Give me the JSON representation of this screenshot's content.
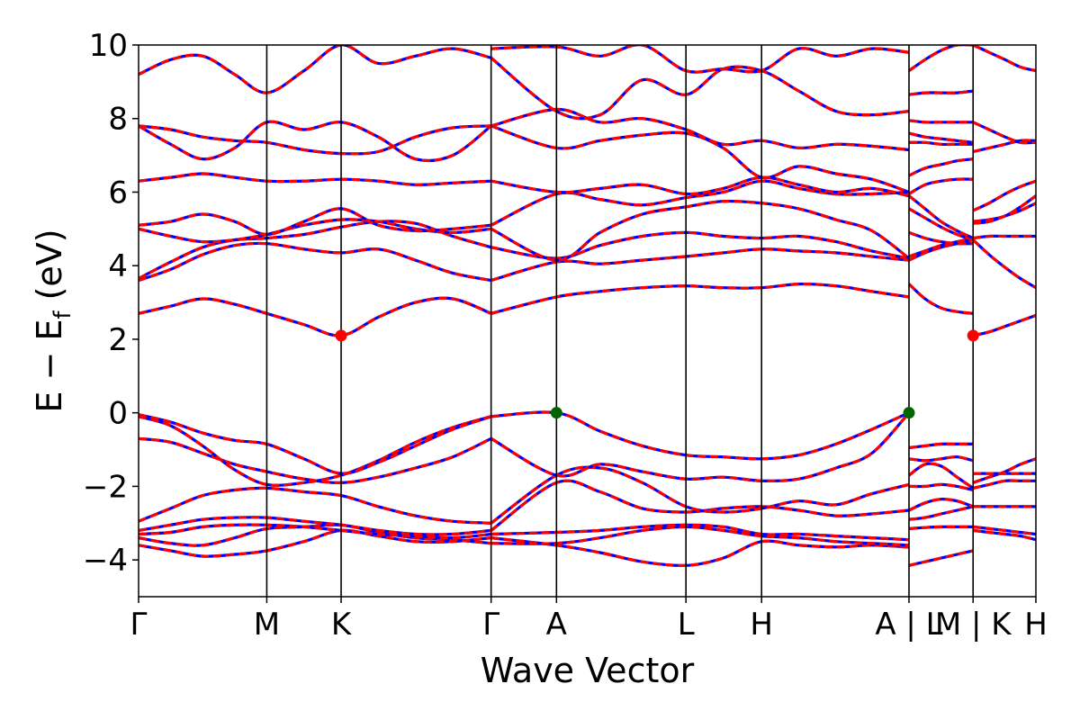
{
  "chart_data": {
    "type": "line",
    "xlabel": "Wave Vector",
    "ylabel_main": "E − E",
    "ylabel_sub": "f",
    "ylabel_unit": " (eV)",
    "ylim": [
      -5,
      10
    ],
    "yticks": [
      {
        "value": 10,
        "label": "10"
      },
      {
        "value": 8,
        "label": "8"
      },
      {
        "value": 6,
        "label": "6"
      },
      {
        "value": 4,
        "label": "4"
      },
      {
        "value": 2,
        "label": "2"
      },
      {
        "value": 0,
        "label": "0"
      },
      {
        "value": -2,
        "label": "−2"
      },
      {
        "value": -4,
        "label": "−4"
      }
    ],
    "xlim": [
      0,
      7.0
    ],
    "kpoints": [
      {
        "x": 0.0,
        "label": "Γ"
      },
      {
        "x": 1.0,
        "label": "M"
      },
      {
        "x": 1.58,
        "label": "K"
      },
      {
        "x": 2.75,
        "label": "Γ"
      },
      {
        "x": 3.26,
        "label": "A"
      },
      {
        "x": 4.27,
        "label": "L"
      },
      {
        "x": 4.86,
        "label": "H"
      },
      {
        "x": 6.01,
        "label": "A | L"
      },
      {
        "x": 6.51,
        "label": "M | K"
      },
      {
        "x": 7.0,
        "label": "H"
      }
    ],
    "grid": false,
    "colors": {
      "up": "#ff0000",
      "down": "#0000ff",
      "cbm": "#ff0000",
      "vbm": "#006400",
      "axis": "#000000"
    },
    "markers": [
      {
        "type": "cbm",
        "x": 1.58,
        "y": 2.1
      },
      {
        "type": "cbm",
        "x": 6.51,
        "y": 2.1
      },
      {
        "type": "vbm",
        "x": 3.26,
        "y": 0.0
      },
      {
        "type": "vbm",
        "x": 6.01,
        "y": 0.0
      }
    ],
    "segments": [
      {
        "x": [
          0.0,
          0.25,
          0.5,
          0.75,
          1.0,
          1.29,
          1.58,
          1.87,
          2.16,
          2.45,
          2.75
        ],
        "bands": [
          [
            -3.6,
            -3.75,
            -3.9,
            -3.85,
            -3.75,
            -3.5,
            -3.2,
            -3.35,
            -3.5,
            -3.5,
            -3.4
          ],
          [
            -3.4,
            -3.55,
            -3.6,
            -3.4,
            -3.15,
            -3.1,
            -3.05,
            -3.25,
            -3.4,
            -3.45,
            -3.55
          ],
          [
            -3.3,
            -3.25,
            -3.1,
            -3.05,
            -3.05,
            -3.1,
            -3.2,
            -3.3,
            -3.35,
            -3.4,
            -3.3
          ],
          [
            -3.2,
            -3.05,
            -2.9,
            -2.85,
            -2.85,
            -2.95,
            -3.05,
            -3.2,
            -3.3,
            -3.3,
            -3.2
          ],
          [
            -2.95,
            -2.6,
            -2.25,
            -2.1,
            -2.05,
            -2.15,
            -2.25,
            -2.55,
            -2.8,
            -2.95,
            -3.0
          ],
          [
            -0.7,
            -0.8,
            -1.1,
            -1.4,
            -1.6,
            -1.8,
            -1.9,
            -1.75,
            -1.5,
            -1.2,
            -0.7
          ],
          [
            -0.1,
            -0.35,
            -0.9,
            -1.55,
            -1.95,
            -1.9,
            -1.7,
            -1.3,
            -0.8,
            -0.4,
            -0.1
          ],
          [
            -0.05,
            -0.25,
            -0.55,
            -0.75,
            -0.85,
            -1.25,
            -1.65,
            -1.35,
            -0.9,
            -0.45,
            -0.1
          ],
          [
            2.7,
            2.9,
            3.1,
            2.95,
            2.7,
            2.4,
            2.1,
            2.6,
            3.0,
            3.1,
            2.7
          ],
          [
            3.6,
            3.9,
            4.3,
            4.55,
            4.6,
            4.45,
            4.35,
            4.45,
            4.15,
            3.8,
            3.6
          ],
          [
            3.65,
            4.1,
            4.5,
            4.7,
            4.75,
            4.85,
            5.05,
            5.2,
            5.15,
            4.8,
            4.5
          ],
          [
            5.0,
            4.8,
            4.65,
            4.7,
            4.85,
            5.1,
            5.25,
            5.2,
            5.0,
            4.9,
            5.0
          ],
          [
            5.1,
            5.2,
            5.4,
            5.2,
            4.85,
            5.2,
            5.55,
            5.1,
            4.95,
            5.0,
            5.1
          ],
          [
            6.3,
            6.4,
            6.5,
            6.4,
            6.3,
            6.3,
            6.35,
            6.3,
            6.2,
            6.25,
            6.3
          ],
          [
            7.8,
            7.7,
            7.5,
            7.4,
            7.35,
            7.15,
            7.05,
            7.1,
            7.5,
            7.75,
            7.8
          ],
          [
            7.8,
            7.3,
            6.9,
            7.2,
            7.9,
            7.7,
            7.9,
            7.5,
            6.9,
            7.0,
            7.8
          ],
          [
            9.2,
            9.6,
            9.7,
            9.2,
            8.7,
            9.3,
            10.0,
            9.5,
            9.7,
            9.9,
            9.65
          ]
        ]
      },
      {
        "x": [
          2.75,
          3.26,
          3.6,
          3.93,
          4.27,
          4.56,
          4.86,
          5.15,
          5.44,
          5.72,
          6.01
        ],
        "bands": [
          [
            -3.4,
            -3.6,
            -3.8,
            -4.05,
            -4.15,
            -3.95,
            -3.5,
            -3.6,
            -3.65,
            -3.6,
            -3.65
          ],
          [
            -3.55,
            -3.55,
            -3.4,
            -3.2,
            -3.1,
            -3.2,
            -3.35,
            -3.4,
            -3.5,
            -3.55,
            -3.6
          ],
          [
            -3.3,
            -3.25,
            -3.2,
            -3.1,
            -3.05,
            -3.1,
            -3.3,
            -3.3,
            -3.35,
            -3.4,
            -3.45
          ],
          [
            -3.2,
            -1.9,
            -2.15,
            -2.6,
            -2.7,
            -2.6,
            -2.55,
            -2.65,
            -2.8,
            -2.75,
            -2.65
          ],
          [
            -3.0,
            -1.7,
            -1.5,
            -1.9,
            -2.55,
            -2.7,
            -2.6,
            -2.4,
            -2.5,
            -2.2,
            -1.95
          ],
          [
            -0.7,
            -1.7,
            -1.4,
            -1.6,
            -1.8,
            -1.75,
            -1.85,
            -1.8,
            -1.5,
            -1.1,
            0.0
          ],
          [
            -0.1,
            0.0,
            -0.5,
            -0.9,
            -1.15,
            -1.2,
            -1.25,
            -1.15,
            -0.85,
            -0.45,
            0.0
          ],
          [
            2.7,
            3.15,
            3.3,
            3.4,
            3.45,
            3.4,
            3.4,
            3.5,
            3.45,
            3.3,
            3.15
          ],
          [
            3.6,
            4.1,
            4.05,
            4.15,
            4.25,
            4.35,
            4.45,
            4.4,
            4.35,
            4.25,
            4.15
          ],
          [
            4.5,
            4.2,
            4.55,
            4.8,
            4.9,
            4.8,
            4.75,
            4.8,
            4.65,
            4.4,
            4.2
          ],
          [
            5.0,
            4.15,
            4.9,
            5.4,
            5.6,
            5.75,
            5.7,
            5.55,
            5.25,
            4.95,
            4.2
          ],
          [
            5.1,
            5.95,
            5.8,
            5.65,
            5.85,
            6.0,
            6.3,
            6.1,
            5.95,
            5.95,
            6.0
          ],
          [
            6.3,
            6.0,
            6.1,
            6.2,
            5.95,
            6.1,
            6.4,
            6.2,
            6.0,
            6.1,
            5.9
          ],
          [
            7.8,
            7.2,
            7.4,
            7.55,
            7.6,
            7.2,
            6.4,
            6.7,
            6.5,
            6.35,
            6.0
          ],
          [
            7.8,
            8.25,
            7.9,
            8.0,
            7.7,
            7.3,
            7.4,
            7.2,
            7.3,
            7.25,
            7.15
          ],
          [
            9.65,
            8.2,
            8.1,
            9.05,
            8.65,
            9.35,
            9.3,
            8.75,
            8.2,
            8.1,
            8.2
          ],
          [
            9.9,
            9.95,
            9.7,
            10.0,
            9.3,
            9.35,
            9.3,
            9.9,
            9.7,
            9.9,
            9.8
          ]
        ]
      },
      {
        "x": [
          6.01,
          6.135,
          6.26,
          6.385,
          6.51
        ],
        "bands": [
          [
            -4.15,
            -4.05,
            -3.95,
            -3.85,
            -3.75
          ],
          [
            -3.15,
            -3.12,
            -3.1,
            -3.1,
            -3.1
          ],
          [
            -2.9,
            -2.85,
            -2.75,
            -2.65,
            -2.55
          ],
          [
            -2.65,
            -2.45,
            -2.35,
            -2.4,
            -2.55
          ],
          [
            -2.0,
            -2.0,
            -1.95,
            -2.0,
            -2.1
          ],
          [
            -1.7,
            -1.4,
            -1.45,
            -1.75,
            -2.05
          ],
          [
            -1.25,
            -1.3,
            -1.25,
            -1.2,
            -1.3
          ],
          [
            -0.95,
            -0.9,
            -0.85,
            -0.85,
            -0.85
          ],
          [
            3.5,
            3.1,
            2.85,
            2.75,
            2.7
          ],
          [
            4.15,
            4.35,
            4.5,
            4.6,
            4.7
          ],
          [
            4.25,
            4.4,
            4.55,
            4.65,
            4.75
          ],
          [
            4.9,
            4.75,
            4.65,
            4.6,
            4.6
          ],
          [
            5.55,
            5.3,
            5.05,
            4.85,
            4.7
          ],
          [
            5.9,
            5.55,
            5.2,
            4.95,
            4.75
          ],
          [
            5.95,
            6.2,
            6.3,
            6.35,
            6.35
          ],
          [
            6.45,
            6.65,
            6.75,
            6.85,
            6.9
          ],
          [
            7.35,
            7.35,
            7.3,
            7.3,
            7.3
          ],
          [
            7.6,
            7.5,
            7.45,
            7.4,
            7.35
          ],
          [
            7.95,
            7.9,
            7.9,
            7.9,
            7.9
          ],
          [
            8.65,
            8.7,
            8.7,
            8.7,
            8.75
          ],
          [
            9.3,
            9.6,
            9.85,
            10.0,
            10.0
          ]
        ]
      },
      {
        "x": [
          6.51,
          6.635,
          6.76,
          6.88,
          7.0
        ],
        "bands": [
          [
            -3.2,
            -3.25,
            -3.3,
            -3.35,
            -3.45
          ],
          [
            -3.1,
            -3.15,
            -3.2,
            -3.25,
            -3.3
          ],
          [
            -2.55,
            -2.55,
            -2.55,
            -2.55,
            -2.55
          ],
          [
            -2.05,
            -1.95,
            -1.85,
            -1.85,
            -1.85
          ],
          [
            -1.9,
            -1.75,
            -1.6,
            -1.4,
            -1.25
          ],
          [
            -1.65,
            -1.65,
            -1.65,
            -1.65,
            -1.65
          ],
          [
            2.1,
            2.2,
            2.35,
            2.5,
            2.65
          ],
          [
            4.7,
            4.3,
            3.95,
            3.65,
            3.4
          ],
          [
            4.75,
            4.8,
            4.8,
            4.8,
            4.8
          ],
          [
            5.15,
            5.2,
            5.35,
            5.5,
            5.7
          ],
          [
            5.2,
            5.25,
            5.35,
            5.6,
            5.9
          ],
          [
            5.5,
            5.7,
            5.95,
            6.15,
            6.3
          ],
          [
            7.1,
            7.2,
            7.3,
            7.4,
            7.4
          ],
          [
            7.9,
            7.7,
            7.5,
            7.35,
            7.35
          ],
          [
            10.0,
            9.8,
            9.6,
            9.4,
            9.3
          ]
        ]
      }
    ]
  }
}
